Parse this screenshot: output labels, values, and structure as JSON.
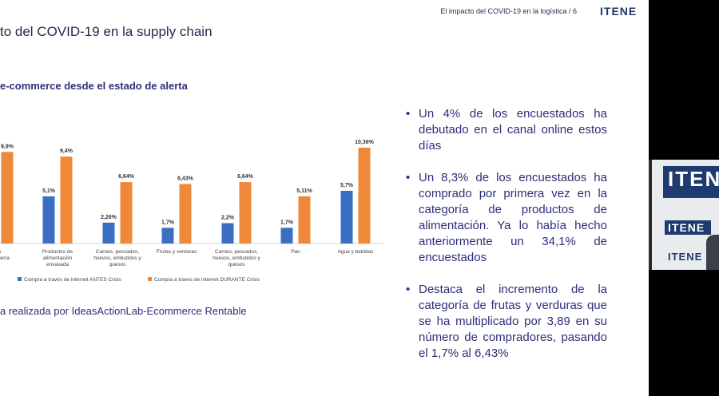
{
  "header": {
    "title": "El impacto del COVID-19 en la logística / 6",
    "logo_text": "ITENE"
  },
  "slide": {
    "title": "to del COVID-19 en la supply chain",
    "subtitle": "e-commerce desde el estado de alerta",
    "source": "a realizada por IdeasActionLab-Ecommerce Rentable"
  },
  "chart_data": {
    "type": "bar",
    "categories": [
      "os\ndroguería",
      "Productos de\nalimentación\nenvasada",
      "Carnes, pescados,\nhuevos, embutidos y\nquesos",
      "Frutas y verduras",
      "Carnes, pescados,\nhuevos, embutidos y\nquesos",
      "Pan",
      "Agua y bebidas"
    ],
    "series": [
      {
        "name": "Compra a través de internet ANTES Crisis",
        "color": "#3a6fc4",
        "values": [
          null,
          5.1,
          2.26,
          1.7,
          2.2,
          1.7,
          5.7
        ],
        "labels": [
          "",
          "5,1%",
          "2,26%",
          "1,7%",
          "2,2%",
          "1,7%",
          "5,7%"
        ]
      },
      {
        "name": "Compra a traves de internet DURANTE Crisis",
        "color": "#f0883a",
        "values": [
          9.9,
          9.4,
          6.64,
          6.43,
          6.64,
          5.11,
          10.36
        ],
        "labels": [
          "9,9%",
          "9,4%",
          "6,64%",
          "6,43%",
          "6,64%",
          "5,11%",
          "10,36%"
        ]
      }
    ],
    "legend_position": "bottom"
  },
  "bullets": [
    "Un 4% de los encuestados ha debutado en el canal online estos días",
    "Un 8,3% de los encuestados ha comprado por primera vez en la categoría de productos de alimentación. Ya lo había hecho anteriormente un 34,1% de encuestados",
    "Destaca el incremento de la categoría de frutas y verduras que se ha multiplicado por 3,89 en su número de compradores, pasando el 1,7% al 6,43%"
  ],
  "webcam": {
    "banner_text": "ITENE",
    "sign_text": "ITENE",
    "wall_text": "ITENE"
  }
}
